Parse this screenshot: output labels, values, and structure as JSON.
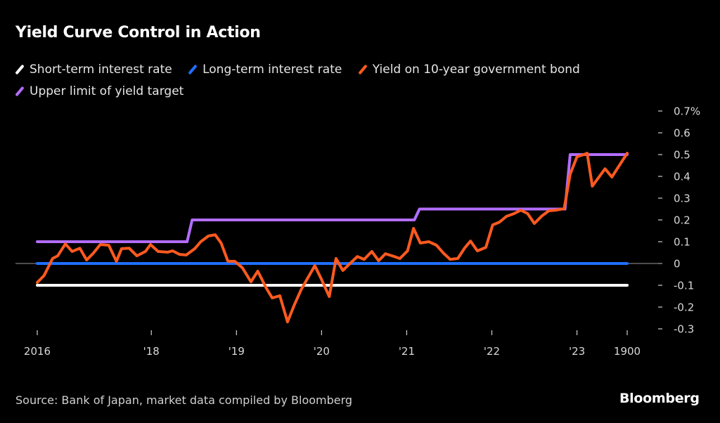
{
  "chart_data": {
    "type": "line",
    "title": "Yield Curve Control in Action",
    "xlabel": "",
    "ylabel": "",
    "ylim": [
      -0.3,
      0.7
    ],
    "y_unit": "%",
    "yticks": [
      {
        "value": 0.7,
        "label": "0.7%"
      },
      {
        "value": 0.6,
        "label": "0.6"
      },
      {
        "value": 0.5,
        "label": "0.5"
      },
      {
        "value": 0.4,
        "label": "0.4"
      },
      {
        "value": 0.3,
        "label": "0.3"
      },
      {
        "value": 0.2,
        "label": "0.2"
      },
      {
        "value": 0.1,
        "label": "0.1"
      },
      {
        "value": 0,
        "label": "0"
      },
      {
        "value": -0.1,
        "label": "-0.1"
      },
      {
        "value": -0.2,
        "label": "-0.2"
      },
      {
        "value": -0.3,
        "label": "-0.3"
      }
    ],
    "xlim": [
      2016.66,
      2023.59
    ],
    "xticks": [
      {
        "value": 2016.66,
        "label": "2016"
      },
      {
        "value": 2018.0,
        "label": "'18"
      },
      {
        "value": 2019.0,
        "label": "'19"
      },
      {
        "value": 2020.0,
        "label": "'20"
      },
      {
        "value": 2021.0,
        "label": "'21"
      },
      {
        "value": 2022.0,
        "label": "'22"
      },
      {
        "value": 2023.0,
        "label": "'23"
      },
      {
        "value": 2023.59,
        "label": "1900"
      }
    ],
    "grid": false,
    "legend_position": "top-left",
    "series": [
      {
        "name": "Short-term interest rate",
        "color": "#ffffff",
        "points": [
          [
            2016.66,
            -0.1
          ],
          [
            2023.59,
            -0.1
          ]
        ]
      },
      {
        "name": "Long-term interest rate",
        "color": "#1f6fff",
        "points": [
          [
            2016.66,
            0.0
          ],
          [
            2023.59,
            0.0
          ]
        ]
      },
      {
        "name": "Upper limit of yield target",
        "color": "#b36dff",
        "points": [
          [
            2016.66,
            0.1
          ],
          [
            2018.42,
            0.1
          ],
          [
            2018.48,
            0.2
          ],
          [
            2021.09,
            0.2
          ],
          [
            2021.15,
            0.25
          ],
          [
            2022.86,
            0.25
          ],
          [
            2022.92,
            0.5
          ],
          [
            2023.59,
            0.5
          ]
        ]
      },
      {
        "name": "Yield on 10-year government bond",
        "color": "#ff5a1f",
        "points": [
          [
            2016.66,
            -0.087
          ],
          [
            2016.74,
            -0.055
          ],
          [
            2016.84,
            0.023
          ],
          [
            2016.9,
            0.035
          ],
          [
            2016.99,
            0.09
          ],
          [
            2017.07,
            0.055
          ],
          [
            2017.16,
            0.07
          ],
          [
            2017.24,
            0.016
          ],
          [
            2017.32,
            0.048
          ],
          [
            2017.4,
            0.087
          ],
          [
            2017.5,
            0.084
          ],
          [
            2017.59,
            0.01
          ],
          [
            2017.65,
            0.068
          ],
          [
            2017.74,
            0.07
          ],
          [
            2017.83,
            0.035
          ],
          [
            2017.93,
            0.055
          ],
          [
            2017.99,
            0.087
          ],
          [
            2018.08,
            0.055
          ],
          [
            2018.19,
            0.052
          ],
          [
            2018.25,
            0.058
          ],
          [
            2018.33,
            0.042
          ],
          [
            2018.41,
            0.039
          ],
          [
            2018.51,
            0.068
          ],
          [
            2018.58,
            0.1
          ],
          [
            2018.67,
            0.126
          ],
          [
            2018.75,
            0.132
          ],
          [
            2018.82,
            0.094
          ],
          [
            2018.9,
            0.01
          ],
          [
            2018.98,
            0.01
          ],
          [
            2019.07,
            -0.02
          ],
          [
            2019.17,
            -0.084
          ],
          [
            2019.25,
            -0.035
          ],
          [
            2019.35,
            -0.113
          ],
          [
            2019.42,
            -0.158
          ],
          [
            2019.51,
            -0.148
          ],
          [
            2019.6,
            -0.268
          ],
          [
            2019.68,
            -0.19
          ],
          [
            2019.76,
            -0.12
          ],
          [
            2019.84,
            -0.065
          ],
          [
            2019.92,
            -0.01
          ],
          [
            2020.0,
            -0.074
          ],
          [
            2020.09,
            -0.152
          ],
          [
            2020.17,
            0.023
          ],
          [
            2020.25,
            -0.032
          ],
          [
            2020.36,
            0.01
          ],
          [
            2020.42,
            0.032
          ],
          [
            2020.5,
            0.019
          ],
          [
            2020.59,
            0.055
          ],
          [
            2020.67,
            0.013
          ],
          [
            2020.75,
            0.045
          ],
          [
            2020.83,
            0.035
          ],
          [
            2020.92,
            0.023
          ],
          [
            2021.01,
            0.058
          ],
          [
            2021.08,
            0.161
          ],
          [
            2021.16,
            0.094
          ],
          [
            2021.26,
            0.1
          ],
          [
            2021.35,
            0.084
          ],
          [
            2021.43,
            0.048
          ],
          [
            2021.51,
            0.019
          ],
          [
            2021.6,
            0.023
          ],
          [
            2021.68,
            0.071
          ],
          [
            2021.75,
            0.103
          ],
          [
            2021.83,
            0.058
          ],
          [
            2021.93,
            0.074
          ],
          [
            2022.01,
            0.177
          ],
          [
            2022.09,
            0.19
          ],
          [
            2022.17,
            0.216
          ],
          [
            2022.26,
            0.229
          ],
          [
            2022.34,
            0.245
          ],
          [
            2022.42,
            0.229
          ],
          [
            2022.5,
            0.184
          ],
          [
            2022.59,
            0.219
          ],
          [
            2022.67,
            0.242
          ],
          [
            2022.75,
            0.245
          ],
          [
            2022.85,
            0.252
          ],
          [
            2022.92,
            0.41
          ],
          [
            2023.0,
            0.49
          ],
          [
            2023.08,
            0.5
          ],
          [
            2023.12,
            0.506
          ],
          [
            2023.18,
            0.355
          ],
          [
            2023.33,
            0.435
          ],
          [
            2023.41,
            0.397
          ],
          [
            2023.59,
            0.506
          ]
        ]
      }
    ],
    "legend": [
      {
        "label": "Short-term interest rate",
        "color": "#ffffff"
      },
      {
        "label": "Long-term interest rate",
        "color": "#1f6fff"
      },
      {
        "label": "Yield on 10-year government bond",
        "color": "#ff5a1f"
      },
      {
        "label": "Upper limit of yield target",
        "color": "#b36dff"
      }
    ]
  },
  "footer": {
    "source": "Source: Bank of Japan, market data compiled by Bloomberg",
    "brand": "Bloomberg"
  }
}
